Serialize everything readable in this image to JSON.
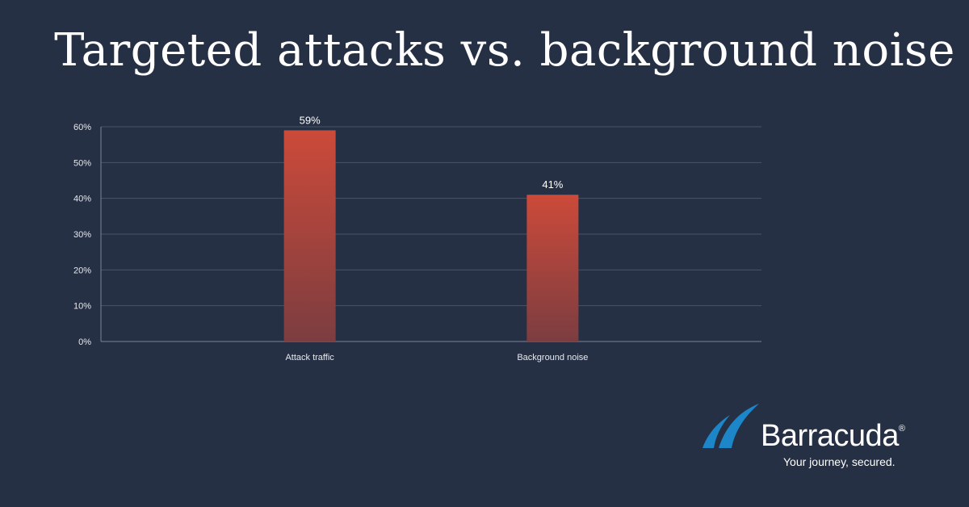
{
  "title": "Targeted attacks vs. background noise",
  "chart_data": {
    "type": "bar",
    "categories": [
      "Attack traffic",
      "Background noise"
    ],
    "values": [
      59,
      41
    ],
    "data_labels": [
      "59%",
      "41%"
    ],
    "ylim": [
      0,
      60
    ],
    "yticks": [
      0,
      10,
      20,
      30,
      40,
      50,
      60
    ],
    "ytick_labels": [
      "0%",
      "10%",
      "20%",
      "30%",
      "40%",
      "50%",
      "60%"
    ],
    "xlabel": "",
    "ylabel": "",
    "grid": true,
    "bar_color_top": "#cc4a3a",
    "bar_color_bottom": "#7c3d40"
  },
  "brand": {
    "name": "Barracuda",
    "trademark": "®",
    "tagline": "Your journey, secured.",
    "fin_color": "#1d86c9"
  }
}
